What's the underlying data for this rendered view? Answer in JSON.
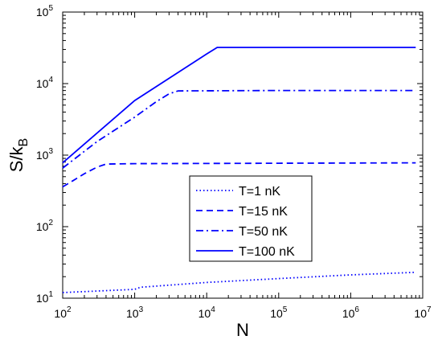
{
  "chart_data": {
    "type": "line",
    "xscale": "log",
    "yscale": "log",
    "xlim": [
      100,
      10000000
    ],
    "ylim": [
      10,
      100000
    ],
    "xlabel": "N",
    "ylabel": "S/k",
    "ylabel_sub": "B",
    "x_ticks": [
      {
        "value": 100,
        "base": "10",
        "exp": "2"
      },
      {
        "value": 1000,
        "base": "10",
        "exp": "3"
      },
      {
        "value": 10000,
        "base": "10",
        "exp": "4"
      },
      {
        "value": 100000,
        "base": "10",
        "exp": "5"
      },
      {
        "value": 1000000,
        "base": "10",
        "exp": "6"
      },
      {
        "value": 10000000,
        "base": "10",
        "exp": "7"
      }
    ],
    "y_ticks": [
      {
        "value": 10,
        "base": "10",
        "exp": "1"
      },
      {
        "value": 100,
        "base": "10",
        "exp": "2"
      },
      {
        "value": 1000,
        "base": "10",
        "exp": "3"
      },
      {
        "value": 10000,
        "base": "10",
        "exp": "4"
      },
      {
        "value": 100000,
        "base": "10",
        "exp": "5"
      }
    ],
    "grid": false,
    "legend_position": "center",
    "series_color": "#0000ff",
    "series": [
      {
        "name": "T=1 nK",
        "style": "dotted",
        "points": [
          [
            100,
            12
          ],
          [
            300,
            12.6
          ],
          [
            1000,
            13.3
          ],
          [
            1200,
            14.2
          ],
          [
            10000,
            16.6
          ],
          [
            100000,
            18.8
          ],
          [
            1000000,
            21.2
          ],
          [
            8000000,
            23
          ]
        ]
      },
      {
        "name": "T=15 nK",
        "style": "dashed",
        "points": [
          [
            100,
            360
          ],
          [
            150,
            460
          ],
          [
            200,
            550
          ],
          [
            300,
            680
          ],
          [
            400,
            750
          ],
          [
            1000,
            760
          ],
          [
            100000,
            770
          ],
          [
            8000000,
            780
          ]
        ]
      },
      {
        "name": "T=50 nK",
        "style": "dashdot",
        "points": [
          [
            100,
            660
          ],
          [
            300,
            1550
          ],
          [
            1000,
            3400
          ],
          [
            2000,
            5600
          ],
          [
            3000,
            7200
          ],
          [
            4000,
            7900
          ],
          [
            100000,
            8000
          ],
          [
            8000000,
            8000
          ]
        ]
      },
      {
        "name": "T=100 nK",
        "style": "solid",
        "points": [
          [
            100,
            780
          ],
          [
            1000,
            5800
          ],
          [
            10000,
            26000
          ],
          [
            14000,
            32000
          ],
          [
            100000,
            32000
          ],
          [
            8000000,
            32000
          ]
        ]
      }
    ]
  }
}
